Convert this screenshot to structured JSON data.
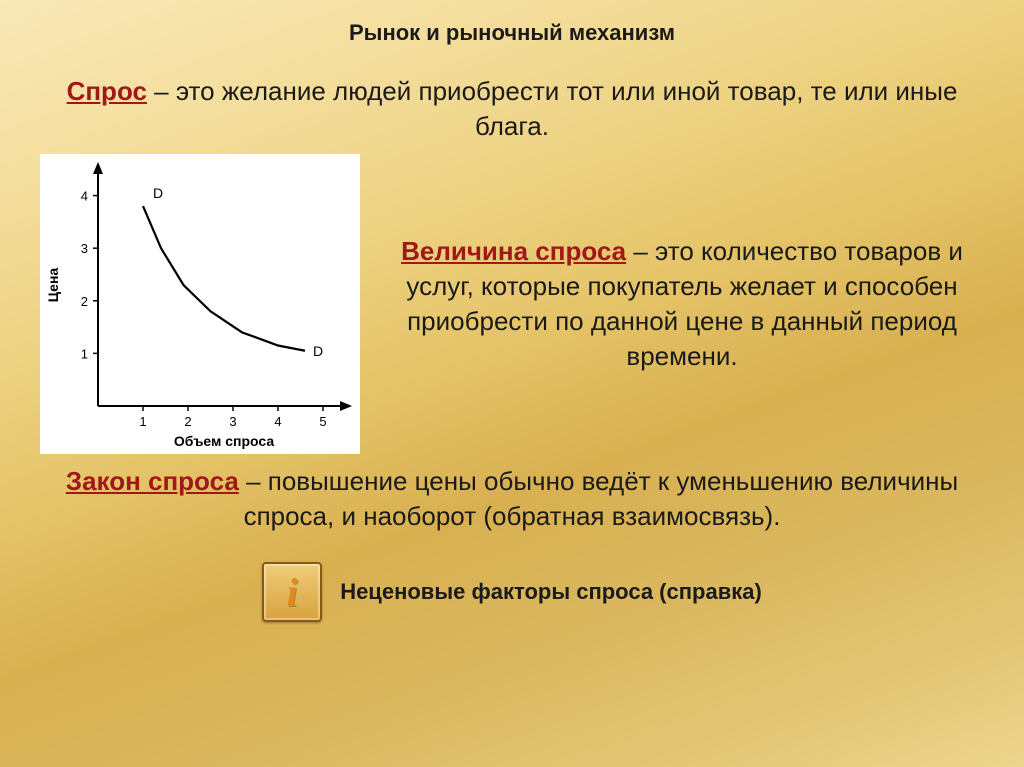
{
  "title": "Рынок и рыночный механизм",
  "p1_kw": "Спрос",
  "p1_rest": " – это желание людей приобрести тот или иной товар, те или иные блага.",
  "p2_kw": "Величина спроса",
  "p2_rest": " – это количество товаров и услуг, которые покупатель желает и способен приобрести по данной цене в данный период времени.",
  "p3_kw": "Закон спроса",
  "p3_rest": " – повышение цены обычно ведёт к уменьшению величины спроса, и наоборот (обратная взаимосвязь).",
  "footer_text": "Неценовые факторы спроса (справка)",
  "chart": {
    "type": "line",
    "background_color": "#ffffff",
    "axis_color": "#000000",
    "line_color": "#000000",
    "line_width": 2.2,
    "xlabel": "Объем спроса",
    "ylabel": "Цена",
    "label_fontsize": 14,
    "tick_fontsize": 13,
    "series_label": "D",
    "xlim": [
      0,
      5.6
    ],
    "ylim": [
      0,
      4.6
    ],
    "xticks": [
      1,
      2,
      3,
      4,
      5
    ],
    "yticks": [
      1,
      2,
      3,
      4
    ],
    "points": [
      {
        "x": 1.0,
        "y": 3.8
      },
      {
        "x": 1.4,
        "y": 3.0
      },
      {
        "x": 1.9,
        "y": 2.3
      },
      {
        "x": 2.5,
        "y": 1.8
      },
      {
        "x": 3.2,
        "y": 1.4
      },
      {
        "x": 4.0,
        "y": 1.15
      },
      {
        "x": 4.6,
        "y": 1.05
      }
    ]
  }
}
